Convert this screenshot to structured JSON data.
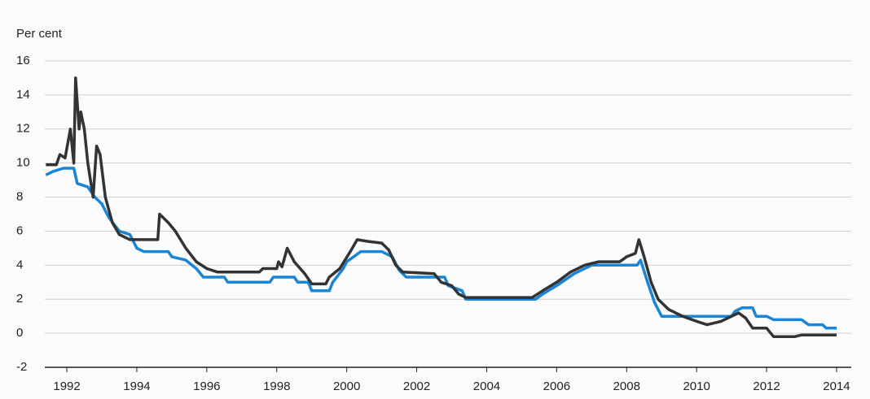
{
  "chart_data": {
    "type": "line",
    "ylabel": "Per cent",
    "xlim": [
      1991.37,
      2014.42
    ],
    "xticks": [
      1992,
      1994,
      1996,
      1998,
      2000,
      2002,
      2004,
      2006,
      2008,
      2010,
      2012,
      2014
    ],
    "ylim": [
      -2,
      16
    ],
    "yticks": [
      -2,
      0,
      2,
      4,
      6,
      8,
      10,
      12,
      14,
      16
    ],
    "grid": true,
    "series": [
      {
        "color": "#333333",
        "x": [
          1991.4,
          1991.7,
          1991.8,
          1991.95,
          1992.1,
          1992.2,
          1992.25,
          1992.35,
          1992.4,
          1992.5,
          1992.6,
          1992.75,
          1992.85,
          1992.95,
          1993.1,
          1993.3,
          1993.5,
          1993.8,
          1994.6,
          1994.65,
          1994.9,
          1995.1,
          1995.4,
          1995.7,
          1996.0,
          1996.3,
          1997.5,
          1997.6,
          1998.0,
          1998.05,
          1998.15,
          1998.3,
          1998.5,
          1998.8,
          1999.0,
          1999.4,
          1999.5,
          1999.8,
          2000.1,
          2000.3,
          2000.6,
          2001.0,
          2001.2,
          2001.4,
          2001.6,
          2002.5,
          2002.7,
          2003.0,
          2003.2,
          2003.4,
          2005.3,
          2005.6,
          2006.0,
          2006.4,
          2006.8,
          2007.2,
          2007.8,
          2008.0,
          2008.25,
          2008.35,
          2008.5,
          2008.7,
          2008.9,
          2009.2,
          2009.6,
          2010.0,
          2010.3,
          2010.7,
          2011.0,
          2011.2,
          2011.4,
          2011.6,
          2012.0,
          2012.2,
          2012.8,
          2013.0,
          2014.0
        ],
        "values": [
          9.9,
          9.9,
          10.5,
          10.3,
          12.0,
          10.0,
          15.0,
          12.0,
          13.0,
          12.0,
          10.0,
          8.0,
          11.0,
          10.5,
          8.0,
          6.5,
          5.8,
          5.5,
          5.5,
          7.0,
          6.5,
          6.0,
          5.0,
          4.2,
          3.8,
          3.6,
          3.6,
          3.8,
          3.8,
          4.2,
          3.9,
          5.0,
          4.2,
          3.5,
          2.9,
          2.9,
          3.3,
          3.8,
          4.8,
          5.5,
          5.4,
          5.3,
          4.9,
          4.0,
          3.6,
          3.5,
          3.0,
          2.8,
          2.3,
          2.1,
          2.1,
          2.5,
          3.0,
          3.6,
          4.0,
          4.2,
          4.2,
          4.5,
          4.7,
          5.5,
          4.5,
          3.0,
          2.0,
          1.4,
          1.0,
          0.7,
          0.5,
          0.7,
          1.0,
          1.2,
          0.9,
          0.3,
          0.3,
          -0.2,
          -0.2,
          -0.1,
          -0.1
        ]
      },
      {
        "color": "#1a85d6",
        "x": [
          1991.4,
          1991.6,
          1991.9,
          1992.2,
          1992.3,
          1992.6,
          1992.8,
          1993.0,
          1993.2,
          1993.5,
          1993.8,
          1994.0,
          1994.2,
          1994.9,
          1995.0,
          1995.4,
          1995.7,
          1995.9,
          1996.5,
          1996.6,
          1997.8,
          1997.9,
          1998.5,
          1998.6,
          1998.9,
          1999.0,
          1999.5,
          1999.6,
          1999.9,
          2000.0,
          2000.2,
          2000.4,
          2001.0,
          2001.3,
          2001.5,
          2001.7,
          2002.8,
          2002.9,
          2003.3,
          2003.4,
          2005.4,
          2005.6,
          2006.0,
          2006.5,
          2007.0,
          2008.3,
          2008.4,
          2008.6,
          2008.8,
          2009.0,
          2009.5,
          2011.0,
          2011.1,
          2011.3,
          2011.6,
          2011.7,
          2012.0,
          2012.2,
          2013.0,
          2013.2,
          2013.6,
          2013.7,
          2014.0
        ],
        "values": [
          9.3,
          9.5,
          9.7,
          9.7,
          8.8,
          8.6,
          8.0,
          7.6,
          6.8,
          6.0,
          5.8,
          5.0,
          4.8,
          4.8,
          4.5,
          4.3,
          3.8,
          3.3,
          3.3,
          3.0,
          3.0,
          3.3,
          3.3,
          3.0,
          3.0,
          2.5,
          2.5,
          3.0,
          3.8,
          4.2,
          4.5,
          4.8,
          4.8,
          4.5,
          3.7,
          3.3,
          3.3,
          2.8,
          2.5,
          2.0,
          2.0,
          2.3,
          2.8,
          3.5,
          4.0,
          4.0,
          4.3,
          3.0,
          1.8,
          1.0,
          1.0,
          1.0,
          1.3,
          1.5,
          1.5,
          1.0,
          1.0,
          0.8,
          0.8,
          0.5,
          0.5,
          0.3,
          0.3
        ]
      }
    ]
  }
}
